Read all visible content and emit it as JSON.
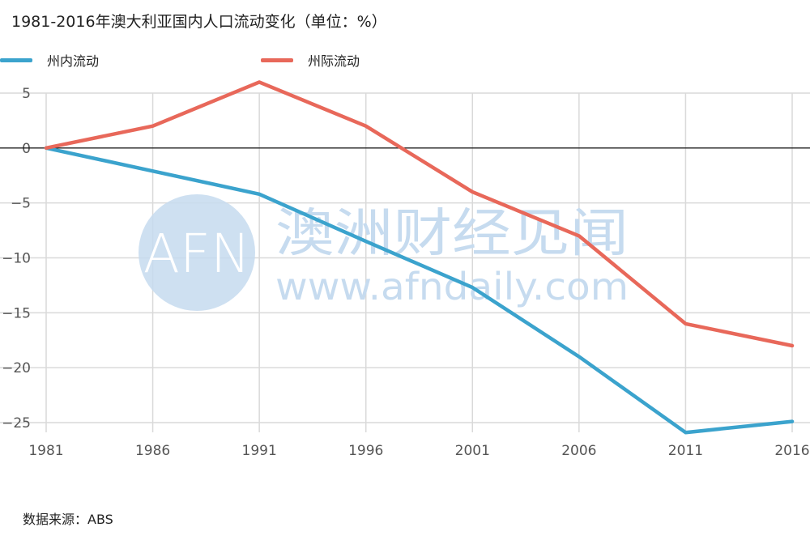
{
  "title": "1981-2016年澳大利亚国内人口流动变化（单位：%）",
  "source_text": "数据来源：ABS",
  "watermark": {
    "logo_text": "AFN",
    "name": "澳洲财经见闻",
    "url": "www.afndaily.com",
    "color": "#c6dbef"
  },
  "chart_data": {
    "type": "line",
    "title": "1981-2016年澳大利亚国内人口流动变化（单位：%）",
    "xlabel": "",
    "ylabel": "",
    "x": [
      "1981",
      "1986",
      "1991",
      "1996",
      "2001",
      "2006",
      "2011",
      "2016"
    ],
    "yticks": [
      "5",
      "0",
      "-5",
      "-10",
      "-15",
      "-20",
      "-25"
    ],
    "ylim": [
      -25,
      5
    ],
    "grid": true,
    "zero_line": true,
    "legend_position": "top-left",
    "series": [
      {
        "name": "州内流动",
        "color": "#3ba3cd",
        "values": [
          0,
          -2.1,
          -4.2,
          -8.5,
          -12.7,
          -19.0,
          -25.9,
          -24.9
        ]
      },
      {
        "name": "州际流动",
        "color": "#e8685a",
        "values": [
          0,
          2.0,
          6.0,
          2.0,
          -4.0,
          -8.0,
          -16.0,
          -18.0
        ]
      }
    ]
  }
}
